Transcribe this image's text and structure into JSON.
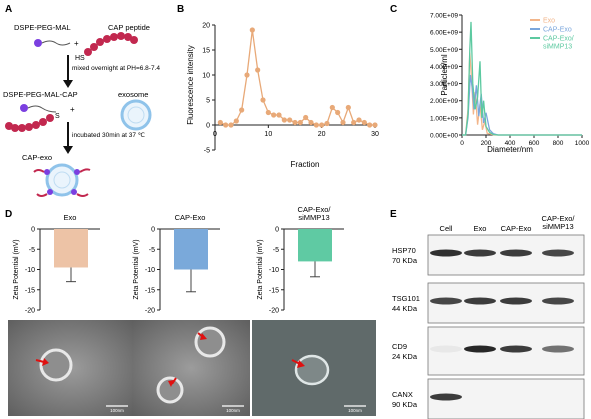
{
  "panel_letters": {
    "a": "A",
    "b": "B",
    "c": "C",
    "d": "D",
    "e": "E"
  },
  "schematic": {
    "dspe_peg_mal": "DSPE-PEG-MAL",
    "cap_peptide": "CAP peptide",
    "plus1": "+",
    "hs": "HS",
    "step1": "mixed overnight at PH=6.8-7.4",
    "dspe_peg_mal_cap": "DSPE-PEG-MAL-CAP",
    "exosome": "exosome",
    "s": "S",
    "plus2": "+",
    "step2": "incubated 30min at 37 ℃",
    "product": "CAP-exo",
    "colors": {
      "lipid": "#7b3fe0",
      "peptide": "#c2284f",
      "exosome_ring": "#8fc3ea"
    }
  },
  "chart_data": [
    {
      "type": "line",
      "panel": "B",
      "title": "",
      "xlabel": "Fraction",
      "ylabel": "Fluorescence intensity",
      "xlim": [
        0,
        30
      ],
      "ylim": [
        -5,
        20
      ],
      "xticks": [
        "0",
        "10",
        "20",
        "30"
      ],
      "yticks": [
        "-5",
        "0",
        "5",
        "10",
        "15",
        "20"
      ],
      "color": "#e8a978",
      "x": [
        1,
        2,
        3,
        4,
        5,
        6,
        7,
        8,
        9,
        10,
        11,
        12,
        13,
        14,
        15,
        16,
        17,
        18,
        19,
        20,
        21,
        22,
        23,
        24,
        25,
        26,
        27,
        28,
        29,
        30
      ],
      "y": [
        0.5,
        0,
        0,
        0.8,
        3,
        10,
        19,
        11,
        5,
        2.5,
        2,
        2,
        1,
        1,
        0.5,
        0.5,
        1.5,
        0.5,
        0,
        0,
        0.3,
        3.5,
        2.5,
        0.5,
        3.5,
        0.5,
        1,
        0.5,
        0,
        0
      ]
    },
    {
      "type": "line",
      "panel": "C",
      "title": "",
      "xlabel": "Diameter/nm",
      "ylabel": "Particles/ml",
      "xlim": [
        0,
        1000
      ],
      "ylim": [
        0,
        7000000000
      ],
      "xticks": [
        "0",
        "200",
        "400",
        "600",
        "800",
        "1000"
      ],
      "yticks": [
        "0.00E+00",
        "1.00E+09",
        "2.00E+09",
        "3.00E+09",
        "4.00E+09",
        "5.00E+09",
        "6.00E+09",
        "7.00E+09"
      ],
      "legend_position": "top-right",
      "series": [
        {
          "name": "Exo",
          "color": "#f2b58a",
          "x": [
            0,
            30,
            50,
            65,
            80,
            95,
            110,
            130,
            150,
            170,
            190,
            210,
            240,
            270,
            300,
            1000
          ],
          "y": [
            0,
            0,
            1500000000,
            4800000000,
            3200000000,
            1200000000,
            2500000000,
            600000000,
            1800000000,
            300000000,
            800000000,
            100000000,
            50000000,
            0,
            0,
            0
          ]
        },
        {
          "name": "CAP-Exo",
          "color": "#7aa6dc",
          "x": [
            0,
            30,
            50,
            70,
            85,
            100,
            120,
            140,
            160,
            180,
            200,
            230,
            260,
            300,
            1000
          ],
          "y": [
            0,
            0,
            1000000000,
            3500000000,
            2800000000,
            1500000000,
            2900000000,
            1100000000,
            2400000000,
            700000000,
            1300000000,
            300000000,
            80000000,
            0,
            0
          ]
        },
        {
          "name": "CAP-Exo/ siMMP13",
          "color": "#5cc9a0",
          "x": [
            0,
            30,
            50,
            65,
            75,
            90,
            110,
            130,
            150,
            165,
            180,
            200,
            230,
            260,
            300,
            1000
          ],
          "y": [
            0,
            0,
            1200000000,
            5000000000,
            6600000000,
            3000000000,
            1500000000,
            2200000000,
            4300000000,
            1000000000,
            2000000000,
            500000000,
            150000000,
            30000000,
            0,
            0
          ]
        }
      ]
    },
    {
      "type": "bar",
      "panel": "D",
      "title": "Exo",
      "ylabel": "Zeta Potential (mV)",
      "ylim": [
        -20,
        0
      ],
      "yticks": [
        "0",
        "-5",
        "-10",
        "-15",
        "-20"
      ],
      "categories": [
        ""
      ],
      "values": [
        -9.5
      ],
      "error": [
        3.5
      ],
      "color": "#edc3a6"
    },
    {
      "type": "bar",
      "panel": "D",
      "title": "CAP-Exo",
      "ylabel": "Zeta Potential (mV)",
      "ylim": [
        -20,
        0
      ],
      "yticks": [
        "0",
        "-5",
        "-10",
        "-15",
        "-20"
      ],
      "categories": [
        ""
      ],
      "values": [
        -10
      ],
      "error": [
        5.5
      ],
      "color": "#7aa9da"
    },
    {
      "type": "bar",
      "panel": "D",
      "title": "CAP-Exo/ siMMP13",
      "ylabel": "Zeta Potential (mV)",
      "ylim": [
        -20,
        0
      ],
      "yticks": [
        "0",
        "-5",
        "-10",
        "-15",
        "-20"
      ],
      "categories": [
        ""
      ],
      "values": [
        -8
      ],
      "error": [
        3.8
      ],
      "color": "#5fcaa3"
    }
  ],
  "tem": {
    "scale_bars": [
      "100nm",
      "100nm",
      "100nm"
    ]
  },
  "western": {
    "columns": [
      "Cell",
      "Exo",
      "CAP-Exo",
      "CAP-Exo/ siMMP13"
    ],
    "bands": [
      {
        "protein": "HSP70",
        "size": "70 KDa",
        "intensity": [
          0.9,
          0.85,
          0.85,
          0.8
        ]
      },
      {
        "protein": "TSG101",
        "size": "44 KDa",
        "intensity": [
          0.8,
          0.85,
          0.85,
          0.8
        ]
      },
      {
        "protein": "CD9",
        "size": "24 KDa",
        "intensity": [
          0.05,
          0.95,
          0.85,
          0.6
        ]
      },
      {
        "protein": "CANX",
        "size": "90 KDa",
        "intensity": [
          0.85,
          0,
          0,
          0
        ]
      }
    ]
  }
}
